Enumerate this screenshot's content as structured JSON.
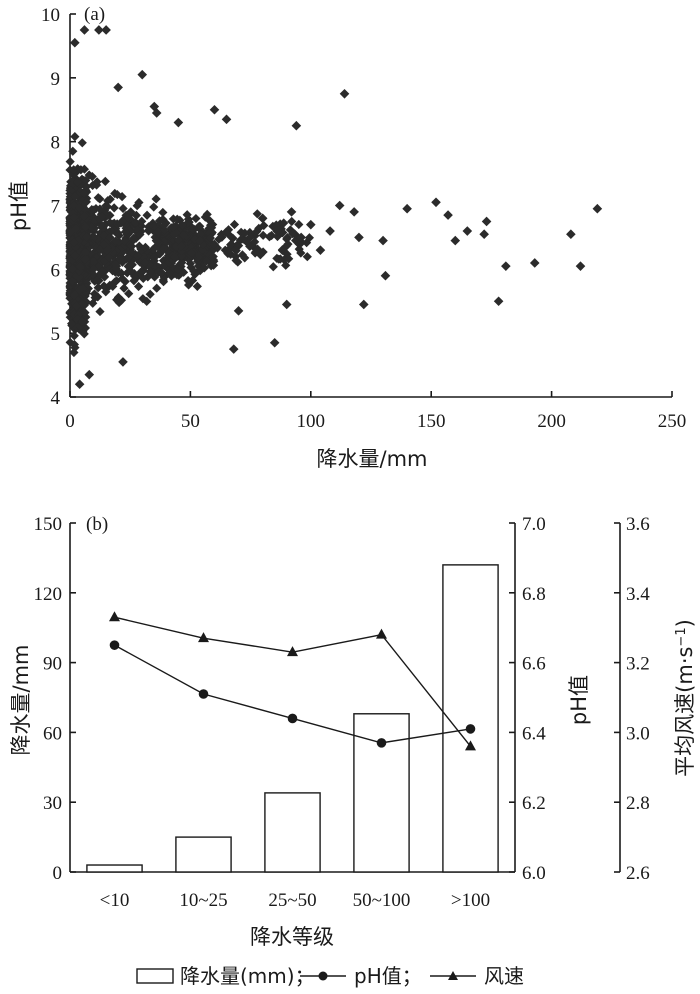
{
  "chart_data": [
    {
      "panel": "(a)",
      "type": "scatter",
      "xlabel": "降水量/mm",
      "ylabel": "pH值",
      "xlim": [
        0,
        250
      ],
      "ylim": [
        4,
        10
      ],
      "xticks": [
        "0",
        "50",
        "100",
        "150",
        "200",
        "250"
      ],
      "yticks": [
        "4",
        "5",
        "6",
        "7",
        "8",
        "9",
        "10"
      ],
      "marker": "diamond",
      "color": "#2b2b2b",
      "outliers": [
        {
          "x": 2,
          "y": 9.55
        },
        {
          "x": 6,
          "y": 9.75
        },
        {
          "x": 12,
          "y": 9.75
        },
        {
          "x": 15,
          "y": 9.75
        },
        {
          "x": 30,
          "y": 9.05
        },
        {
          "x": 20,
          "y": 8.85
        },
        {
          "x": 35,
          "y": 8.55
        },
        {
          "x": 36,
          "y": 8.45
        },
        {
          "x": 60,
          "y": 8.5
        },
        {
          "x": 65,
          "y": 8.35
        },
        {
          "x": 45,
          "y": 8.3
        },
        {
          "x": 114,
          "y": 8.75
        },
        {
          "x": 94,
          "y": 8.25
        },
        {
          "x": 80,
          "y": 6.8
        },
        {
          "x": 86,
          "y": 6.6
        },
        {
          "x": 92,
          "y": 6.9
        },
        {
          "x": 96,
          "y": 6.5
        },
        {
          "x": 100,
          "y": 6.7
        },
        {
          "x": 104,
          "y": 6.3
        },
        {
          "x": 108,
          "y": 6.6
        },
        {
          "x": 112,
          "y": 7.0
        },
        {
          "x": 118,
          "y": 6.9
        },
        {
          "x": 120,
          "y": 6.5
        },
        {
          "x": 122,
          "y": 5.45
        },
        {
          "x": 130,
          "y": 6.45
        },
        {
          "x": 131,
          "y": 5.9
        },
        {
          "x": 140,
          "y": 6.95
        },
        {
          "x": 152,
          "y": 7.05
        },
        {
          "x": 157,
          "y": 6.85
        },
        {
          "x": 160,
          "y": 6.45
        },
        {
          "x": 165,
          "y": 6.6
        },
        {
          "x": 172,
          "y": 6.55
        },
        {
          "x": 173,
          "y": 6.75
        },
        {
          "x": 178,
          "y": 5.5
        },
        {
          "x": 181,
          "y": 6.05
        },
        {
          "x": 193,
          "y": 6.1
        },
        {
          "x": 208,
          "y": 6.55
        },
        {
          "x": 212,
          "y": 6.05
        },
        {
          "x": 219,
          "y": 6.95
        },
        {
          "x": 68,
          "y": 4.75
        },
        {
          "x": 85,
          "y": 4.85
        },
        {
          "x": 70,
          "y": 5.35
        },
        {
          "x": 90,
          "y": 5.45
        },
        {
          "x": 4,
          "y": 4.2
        },
        {
          "x": 22,
          "y": 4.55
        },
        {
          "x": 8,
          "y": 4.35
        }
      ]
    },
    {
      "panel": "(b)",
      "type": "bar",
      "categories": [
        "<10",
        "10~25",
        "25~50",
        "50~100",
        ">100"
      ],
      "xlabel": "降水等级",
      "left_ylabel": "降水量/mm",
      "left_ylim": [
        0,
        150
      ],
      "left_yticks": [
        "0",
        "30",
        "60",
        "90",
        "120",
        "150"
      ],
      "right_ylabel": "pH值",
      "right_ylim": [
        6.0,
        7.0
      ],
      "right_yticks": [
        "6.0",
        "6.2",
        "6.4",
        "6.6",
        "6.8",
        "7.0"
      ],
      "right2_ylabel": "平均风速(m·s",
      "right2_ylabel_sup": "−1",
      "right2_ylabel_end": ")",
      "right2_ylim": [
        2.6,
        3.6
      ],
      "right2_yticks": [
        "2.6",
        "2.8",
        "3.0",
        "3.2",
        "3.4",
        "3.6"
      ],
      "series": [
        {
          "name": "降水量(mm)",
          "kind": "bar",
          "axis": "left",
          "values": [
            3,
            15,
            34,
            68,
            132
          ]
        },
        {
          "name": "pH值",
          "kind": "line",
          "marker": "circle",
          "axis": "right",
          "values": [
            6.65,
            6.51,
            6.44,
            6.37,
            6.41
          ]
        },
        {
          "name": "风速",
          "kind": "line",
          "marker": "triangle",
          "axis": "right2",
          "values": [
            3.33,
            3.27,
            3.23,
            3.28,
            2.96
          ]
        }
      ],
      "legend": {
        "bar_label": "降水量(mm)；",
        "ph_label": "pH值；",
        "wind_label": "风速"
      }
    }
  ]
}
